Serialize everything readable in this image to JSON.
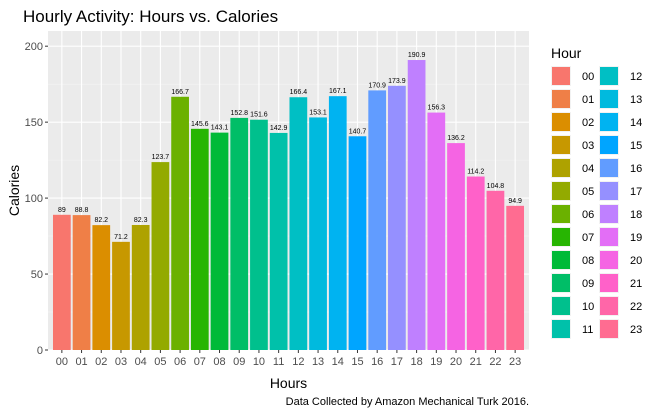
{
  "chart_data": {
    "type": "bar",
    "title": "Hourly Activity: Hours vs. Calories",
    "xlabel": "Hours",
    "ylabel": "Calories",
    "caption": "Data Collected by Amazon Mechanical Turk 2016.",
    "legend_title": "Hour",
    "legend_position": "right",
    "ylim": [
      0,
      210
    ],
    "yticks": [
      0,
      50,
      100,
      150,
      200
    ],
    "grid": true,
    "categories": [
      "00",
      "01",
      "02",
      "03",
      "04",
      "05",
      "06",
      "07",
      "08",
      "09",
      "10",
      "11",
      "12",
      "13",
      "14",
      "15",
      "16",
      "17",
      "18",
      "19",
      "20",
      "21",
      "22",
      "23"
    ],
    "values": [
      89,
      88.8,
      82.2,
      71.2,
      82.3,
      123.7,
      166.7,
      145.6,
      143.1,
      152.8,
      151.6,
      142.9,
      166.4,
      153.1,
      167.1,
      140.7,
      170.9,
      173.9,
      190.9,
      156.3,
      136.2,
      114.2,
      104.8,
      94.9
    ],
    "colors": [
      "#F8766D",
      "#EF7F47",
      "#DB8E00",
      "#C79800",
      "#AEA200",
      "#93AA00",
      "#6BB100",
      "#27B502",
      "#00BA38",
      "#00BE67",
      "#00C08D",
      "#00C1AA",
      "#00BFC4",
      "#00BADE",
      "#00B3F1",
      "#00A5FF",
      "#619CFF",
      "#9590FF",
      "#BF80FF",
      "#E36EF6",
      "#F564E3",
      "#FF61C9",
      "#FF66A8",
      "#FF6C91"
    ]
  }
}
